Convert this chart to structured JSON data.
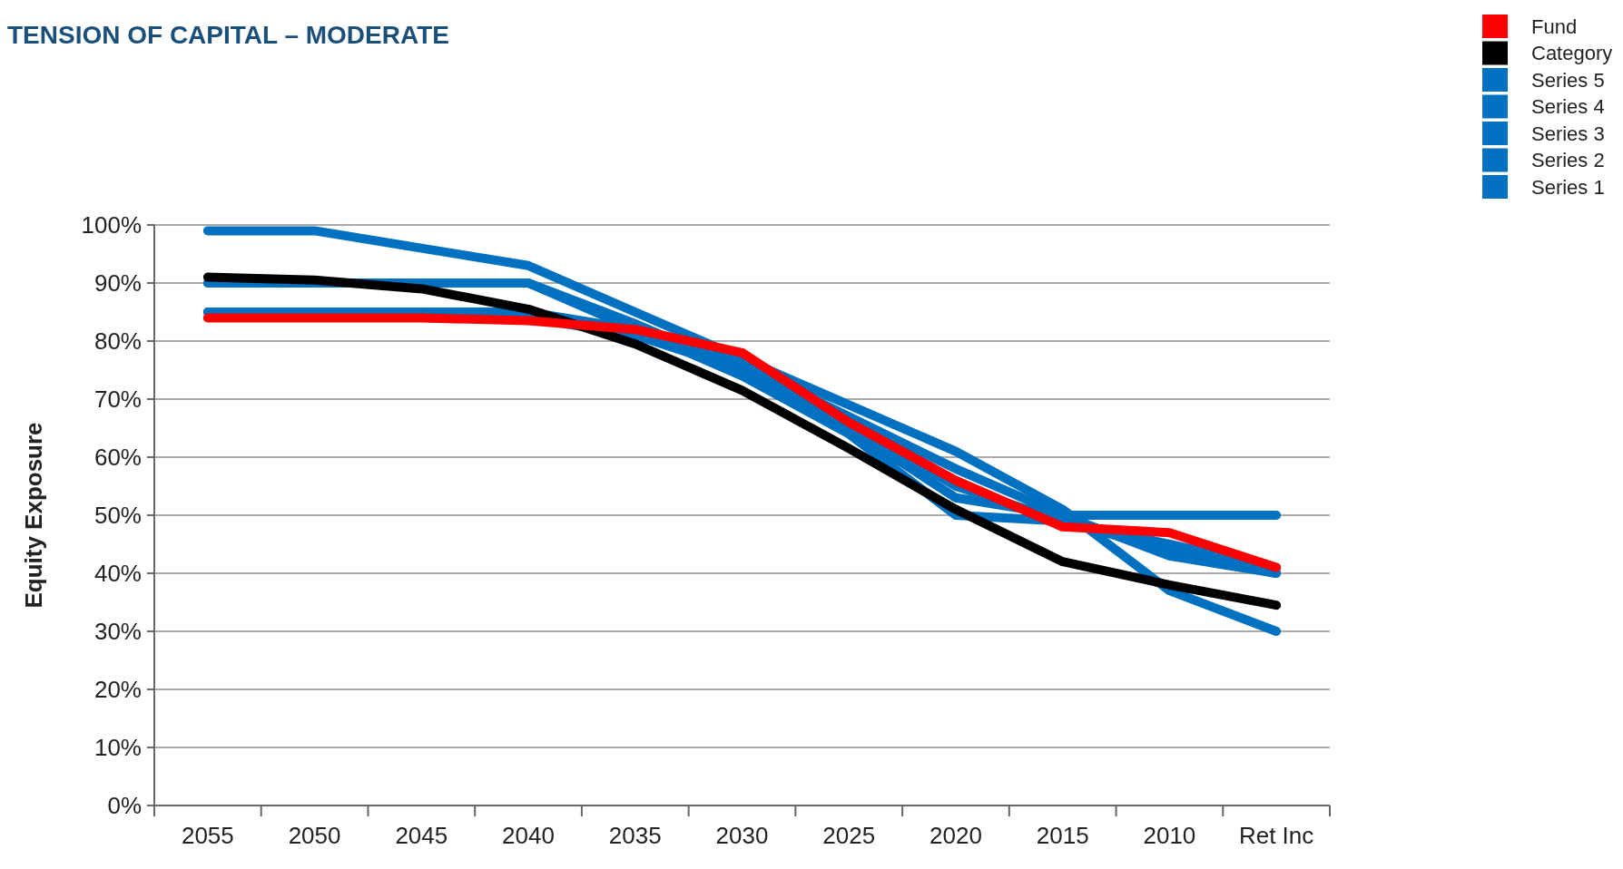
{
  "chart_data": {
    "type": "line",
    "title": "TENSION OF CAPITAL – MODERATE",
    "ylabel": "Equity Exposure",
    "categories": [
      "2055",
      "2050",
      "2045",
      "2040",
      "2035",
      "2030",
      "2025",
      "2020",
      "2015",
      "2010",
      "Ret Inc"
    ],
    "ylim": [
      0,
      100
    ],
    "yticks": [
      {
        "value": 0,
        "label": "0%"
      },
      {
        "value": 10,
        "label": "10%"
      },
      {
        "value": 20,
        "label": "20%"
      },
      {
        "value": 30,
        "label": "30%"
      },
      {
        "value": 40,
        "label": "40%"
      },
      {
        "value": 50,
        "label": "50%"
      },
      {
        "value": 60,
        "label": "60%"
      },
      {
        "value": 70,
        "label": "70%"
      },
      {
        "value": 80,
        "label": "80%"
      },
      {
        "value": 90,
        "label": "90%"
      },
      {
        "value": 100,
        "label": "100%"
      }
    ],
    "grid": "y",
    "legend": "top right",
    "marker": "none",
    "series": [
      {
        "name": "Series 1",
        "color": "#0070c0",
        "values": [
          99,
          99,
          96,
          93,
          85,
          77,
          69,
          61,
          51,
          37,
          30
        ]
      },
      {
        "name": "Series 2",
        "color": "#0070c0",
        "values": [
          90,
          90,
          90,
          90,
          83,
          75,
          65,
          53,
          50,
          50,
          50
        ]
      },
      {
        "name": "Series 3",
        "color": "#0070c0",
        "values": [
          85,
          85,
          85,
          85,
          82,
          76,
          67,
          58,
          50,
          43,
          40
        ]
      },
      {
        "name": "Series 4",
        "color": "#0070c0",
        "values": [
          85,
          85,
          85,
          84,
          81,
          75,
          66,
          55,
          49,
          45,
          41
        ]
      },
      {
        "name": "Series 5",
        "color": "#0070c0",
        "values": [
          90,
          90,
          90,
          90,
          82,
          74,
          64,
          50,
          49,
          44,
          40
        ]
      },
      {
        "name": "Category",
        "color": "#000000",
        "values": [
          91,
          90.5,
          89,
          85.5,
          79.5,
          71.5,
          61.5,
          51,
          42,
          38,
          34.5
        ]
      },
      {
        "name": "Fund",
        "color": "#ff0000",
        "values": [
          84,
          84,
          84,
          83.5,
          82,
          78,
          66,
          56,
          48,
          47,
          41
        ]
      }
    ]
  }
}
